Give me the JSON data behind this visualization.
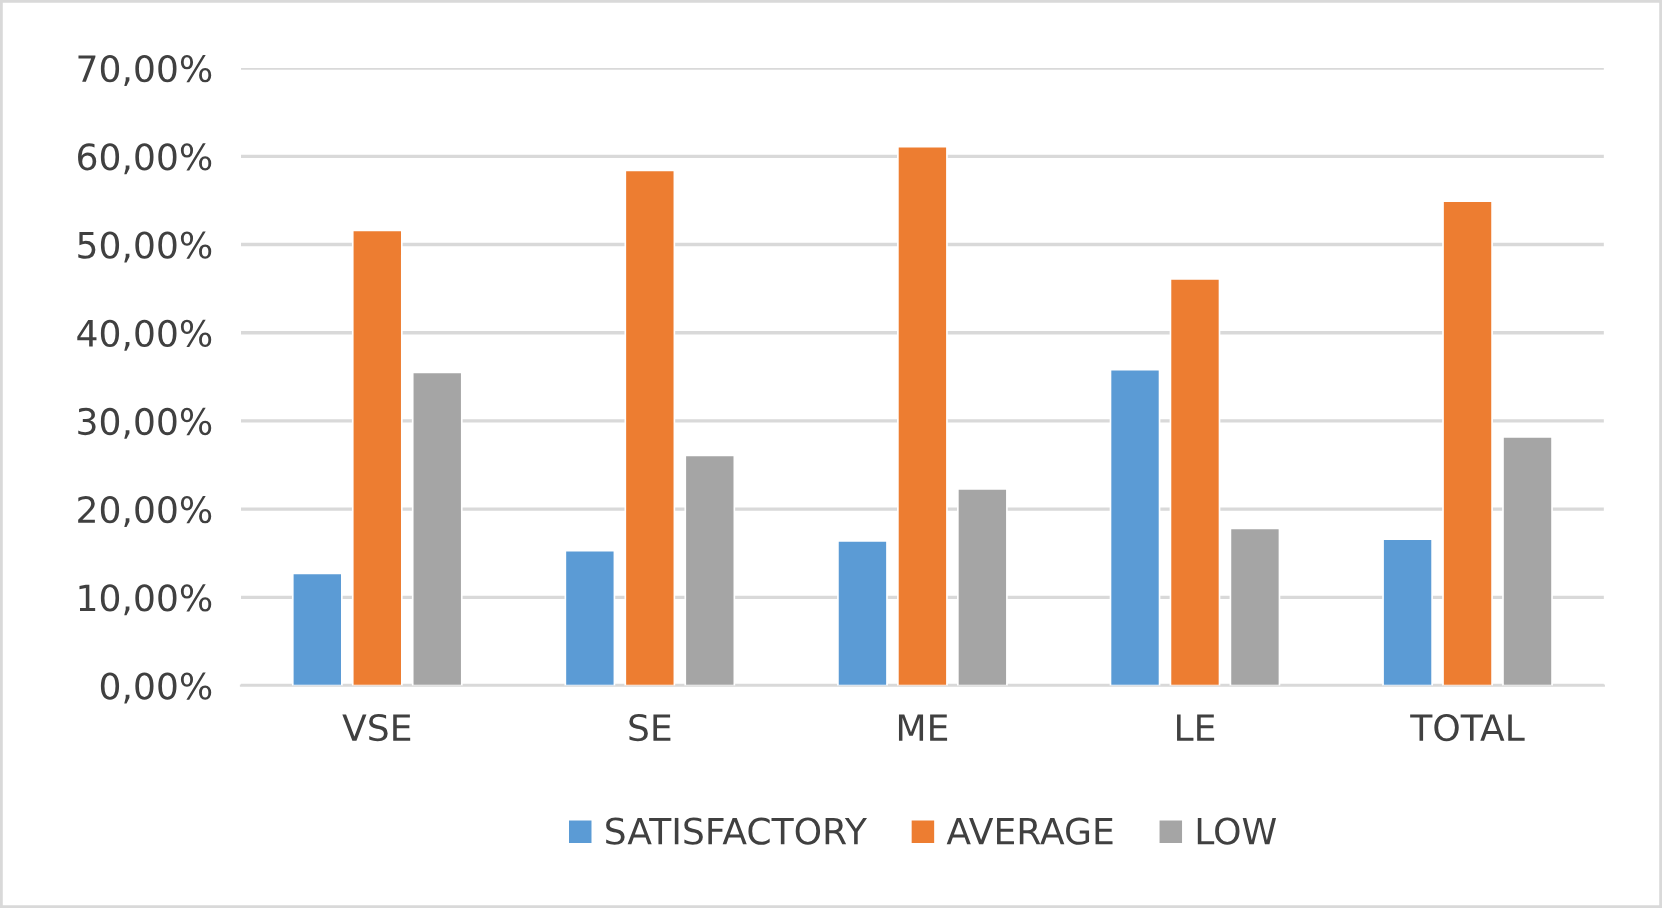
{
  "chart_data": {
    "type": "bar",
    "categories": [
      "VSE",
      "SE",
      "ME",
      "LE",
      "TOTAL"
    ],
    "series": [
      {
        "name": "SATISFACTORY",
        "color": "#5b9bd5",
        "values": [
          12.7,
          15.3,
          16.4,
          35.8,
          16.6
        ]
      },
      {
        "name": "AVERAGE",
        "color": "#ed7d31",
        "values": [
          51.6,
          58.4,
          61.1,
          46.1,
          54.9
        ]
      },
      {
        "name": "LOW",
        "color": "#a5a5a5",
        "values": [
          35.5,
          26.1,
          22.3,
          17.8,
          28.2
        ]
      }
    ],
    "ylim": [
      0,
      70
    ],
    "yticks": [
      {
        "value": 0,
        "label": "0,00%"
      },
      {
        "value": 10,
        "label": "10,00%"
      },
      {
        "value": 20,
        "label": "20,00%"
      },
      {
        "value": 30,
        "label": "30,00%"
      },
      {
        "value": 40,
        "label": "40,00%"
      },
      {
        "value": 50,
        "label": "50,00%"
      },
      {
        "value": 60,
        "label": "60,00%"
      },
      {
        "value": 70,
        "label": "70,00%"
      }
    ],
    "grid": "y",
    "legend": "bottom"
  }
}
